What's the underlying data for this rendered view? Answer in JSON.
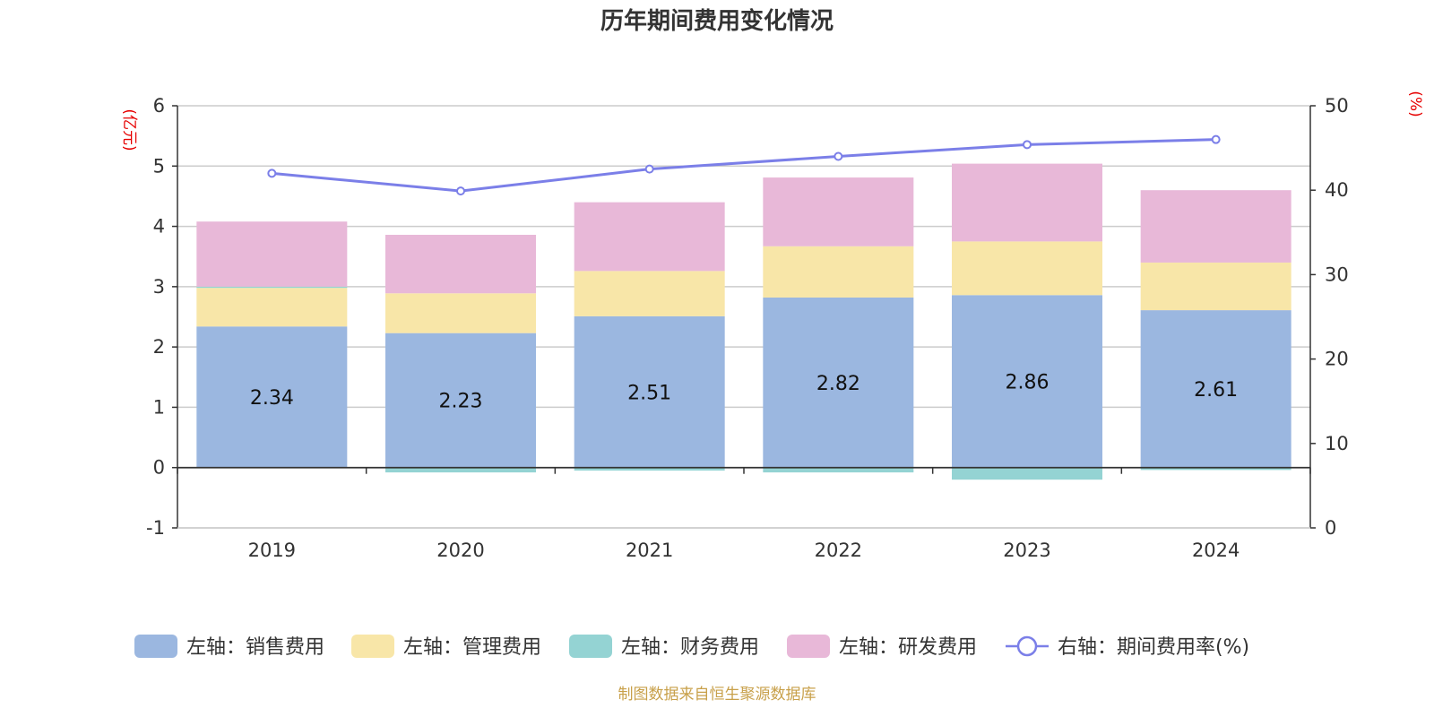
{
  "chart_data": {
    "type": "bar",
    "title": "历年期间费用变化情况",
    "categories": [
      "2019",
      "2020",
      "2021",
      "2022",
      "2023",
      "2024"
    ],
    "left_axis": {
      "unit": "(亿元)",
      "ylim": [
        -1,
        6
      ],
      "ticks": [
        "-1",
        "0",
        "1",
        "2",
        "3",
        "4",
        "5",
        "6"
      ]
    },
    "right_axis": {
      "unit": "(%)",
      "ylim": [
        0,
        50
      ],
      "ticks": [
        "0",
        "10",
        "20",
        "30",
        "40",
        "50"
      ]
    },
    "series": [
      {
        "name": "左轴：销售费用",
        "type": "bar",
        "axis": "left",
        "color": "#9bb7e0",
        "values": [
          2.34,
          2.23,
          2.51,
          2.82,
          2.86,
          2.61
        ],
        "labels": [
          "2.34",
          "2.23",
          "2.51",
          "2.82",
          "2.86",
          "2.61"
        ]
      },
      {
        "name": "左轴：管理费用",
        "type": "bar",
        "axis": "left",
        "color": "#f8e6a8",
        "values": [
          0.64,
          0.66,
          0.75,
          0.85,
          0.89,
          0.79
        ]
      },
      {
        "name": "左轴：财务费用",
        "type": "bar",
        "axis": "left",
        "color": "#94d3d3",
        "values": [
          0.02,
          -0.08,
          -0.05,
          -0.08,
          -0.2,
          -0.04
        ]
      },
      {
        "name": "左轴：研发费用",
        "type": "bar",
        "axis": "left",
        "color": "#e8b8d8",
        "values": [
          1.08,
          0.97,
          1.14,
          1.14,
          1.29,
          1.2
        ]
      },
      {
        "name": "右轴：期间费用率(%)",
        "type": "line",
        "axis": "right",
        "color": "#7b7fe8",
        "values": [
          42.0,
          39.9,
          42.5,
          44.0,
          45.4,
          46.0
        ]
      }
    ],
    "grid": true,
    "legend_position": "bottom"
  },
  "footer": {
    "source": "制图数据来自恒生聚源数据库"
  }
}
